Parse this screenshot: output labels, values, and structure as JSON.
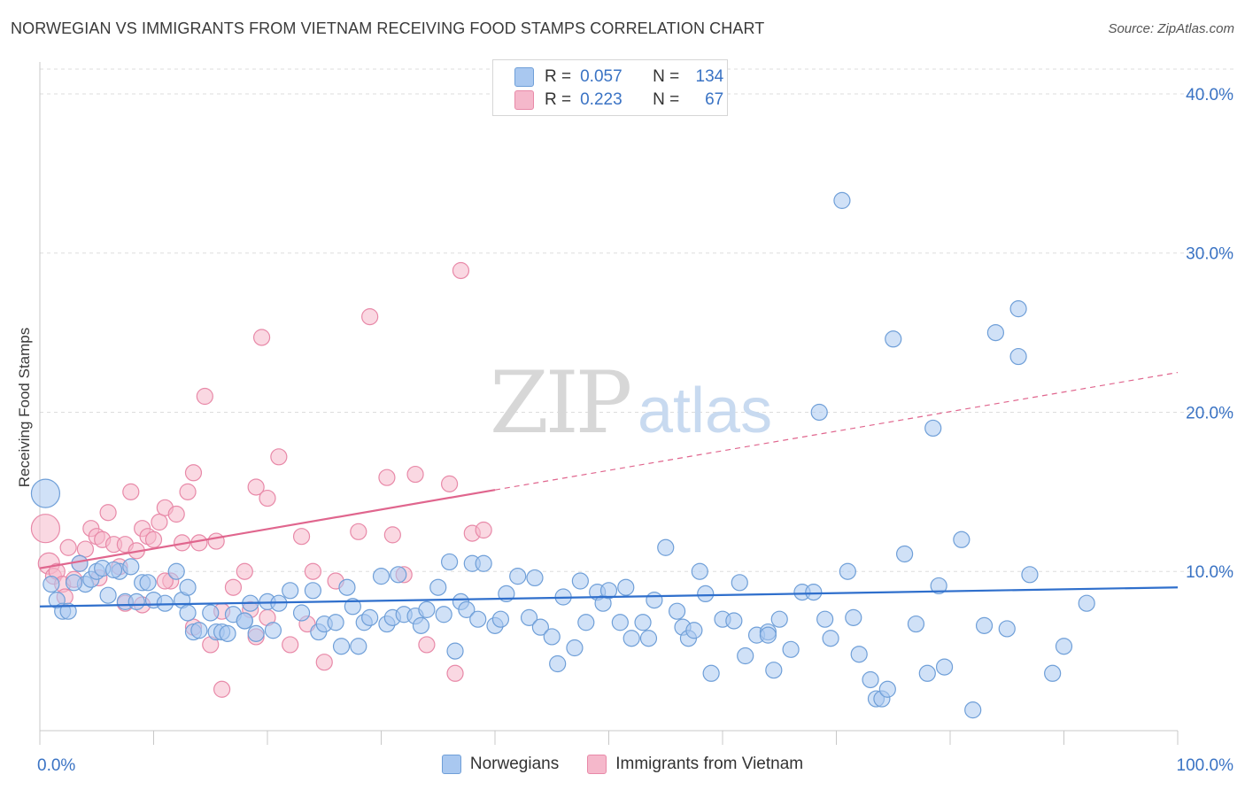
{
  "title": "NORWEGIAN VS IMMIGRANTS FROM VIETNAM RECEIVING FOOD STAMPS CORRELATION CHART",
  "source": "Source: ZipAtlas.com",
  "watermark": {
    "zip": "ZIP",
    "atlas": "atlas"
  },
  "colors": {
    "blue_fill": "#a9c8f0",
    "blue_stroke": "#6f9fd8",
    "blue_line": "#2f6fcc",
    "pink_fill": "#f5b8cb",
    "pink_stroke": "#e889a8",
    "pink_line": "#e0668e",
    "tick_label": "#3a73c4",
    "grid": "#dddddd"
  },
  "legend_top": {
    "rows": [
      {
        "r_label": "R =",
        "r_value": "0.057",
        "n_label": "N =",
        "n_value": "134",
        "color": "#a9c8f0",
        "border": "#6f9fd8"
      },
      {
        "r_label": "R =",
        "r_value": "0.223",
        "n_label": "N =",
        "n_value": "67",
        "color": "#f5b8cb",
        "border": "#e889a8"
      }
    ]
  },
  "legend_bottom": [
    {
      "label": "Norwegians",
      "color": "#a9c8f0",
      "border": "#6f9fd8"
    },
    {
      "label": "Immigrants from Vietnam",
      "color": "#f5b8cb",
      "border": "#e889a8"
    }
  ],
  "chart_data": {
    "type": "scatter",
    "title": "NORWEGIAN VS IMMIGRANTS FROM VIETNAM RECEIVING FOOD STAMPS CORRELATION CHART",
    "xlabel": "",
    "ylabel": "Receiving Food Stamps",
    "xlim": [
      0,
      100
    ],
    "ylim": [
      0,
      42
    ],
    "x_tick_labels": [
      {
        "value": 0,
        "label": "0.0%"
      },
      {
        "value": 100,
        "label": "100.0%"
      }
    ],
    "y_tick_labels": [
      {
        "value": 10,
        "label": "10.0%"
      },
      {
        "value": 20,
        "label": "20.0%"
      },
      {
        "value": 30,
        "label": "30.0%"
      },
      {
        "value": 40,
        "label": "40.0%"
      }
    ],
    "grid": true,
    "legend_position": "top-center",
    "series": [
      {
        "name": "Norwegians",
        "trend": {
          "x0": 0,
          "y0": 7.8,
          "x1": 100,
          "y1": 9.0,
          "dashed_from": null
        },
        "points": [
          [
            0.5,
            14.9,
            "L"
          ],
          [
            1,
            9.2
          ],
          [
            1.5,
            8.2
          ],
          [
            2,
            7.5
          ],
          [
            2.5,
            7.5
          ],
          [
            3.5,
            10.5
          ],
          [
            4,
            9.2
          ],
          [
            4.5,
            9.5
          ],
          [
            5,
            10.0
          ],
          [
            5.5,
            10.2
          ],
          [
            6,
            8.5
          ],
          [
            7,
            10.0
          ],
          [
            7.5,
            8.1
          ],
          [
            8,
            10.3
          ],
          [
            8.5,
            8.1
          ],
          [
            9,
            9.3
          ],
          [
            9.5,
            9.3
          ],
          [
            10,
            8.2
          ],
          [
            11,
            8.0
          ],
          [
            12,
            10.0
          ],
          [
            12.5,
            8.2
          ],
          [
            13,
            7.4
          ],
          [
            13.5,
            6.2
          ],
          [
            14,
            6.3
          ],
          [
            15,
            7.4
          ],
          [
            15.5,
            6.2
          ],
          [
            16,
            6.2
          ],
          [
            16.5,
            6.1
          ],
          [
            17,
            7.3
          ],
          [
            18,
            6.9
          ],
          [
            18.5,
            8.0
          ],
          [
            19,
            6.1
          ],
          [
            20,
            8.1
          ],
          [
            20.5,
            6.3
          ],
          [
            21,
            8.0
          ],
          [
            22,
            8.8
          ],
          [
            23,
            7.4
          ],
          [
            24,
            8.8
          ],
          [
            24.5,
            6.2
          ],
          [
            25,
            6.7
          ],
          [
            26,
            6.8
          ],
          [
            26.5,
            5.3
          ],
          [
            27,
            9.0
          ],
          [
            28,
            5.3
          ],
          [
            28.5,
            6.8
          ],
          [
            29,
            7.1
          ],
          [
            30,
            9.7
          ],
          [
            30.5,
            6.7
          ],
          [
            31,
            7.1
          ],
          [
            31.5,
            9.8
          ],
          [
            32,
            7.3
          ],
          [
            33,
            7.2
          ],
          [
            33.5,
            6.6
          ],
          [
            34,
            7.6
          ],
          [
            35,
            9.0
          ],
          [
            36,
            10.6
          ],
          [
            36.5,
            5.0
          ],
          [
            37,
            8.1
          ],
          [
            37.5,
            7.6
          ],
          [
            38,
            10.5
          ],
          [
            39,
            10.5
          ],
          [
            40,
            6.6
          ],
          [
            40.5,
            7.0
          ],
          [
            41,
            8.6
          ],
          [
            42,
            9.7
          ],
          [
            43,
            7.1
          ],
          [
            43.5,
            9.6
          ],
          [
            44,
            6.5
          ],
          [
            45,
            5.9
          ],
          [
            45.5,
            4.2
          ],
          [
            46,
            8.4
          ],
          [
            47,
            5.2
          ],
          [
            47.5,
            9.4
          ],
          [
            48,
            6.8
          ],
          [
            49,
            8.7
          ],
          [
            49.5,
            8.0
          ],
          [
            50,
            8.8
          ],
          [
            51,
            6.8
          ],
          [
            51.5,
            9.0
          ],
          [
            52,
            5.8
          ],
          [
            53,
            6.8
          ],
          [
            53.5,
            5.8
          ],
          [
            54,
            8.2
          ],
          [
            55,
            11.5
          ],
          [
            56,
            7.5
          ],
          [
            56.5,
            6.5
          ],
          [
            57,
            5.8
          ],
          [
            58,
            10.0
          ],
          [
            58.5,
            8.6
          ],
          [
            59,
            3.6
          ],
          [
            60,
            7.0
          ],
          [
            61,
            6.9
          ],
          [
            61.5,
            9.3
          ],
          [
            62,
            4.7
          ],
          [
            63,
            6.0
          ],
          [
            64,
            6.2
          ],
          [
            64.5,
            3.8
          ],
          [
            65,
            7.0
          ],
          [
            66,
            5.1
          ],
          [
            67,
            8.7
          ],
          [
            68,
            8.7
          ],
          [
            69,
            7.0
          ],
          [
            69.5,
            5.8
          ],
          [
            70.5,
            33.3
          ],
          [
            71,
            10.0
          ],
          [
            71.5,
            7.1
          ],
          [
            72,
            4.8
          ],
          [
            73,
            3.2
          ],
          [
            73.5,
            2.0
          ],
          [
            74,
            2.0
          ],
          [
            74.5,
            2.6
          ],
          [
            75,
            24.6
          ],
          [
            76,
            11.1
          ],
          [
            77,
            6.7
          ],
          [
            78,
            3.6
          ],
          [
            78.5,
            19.0
          ],
          [
            79,
            9.1
          ],
          [
            79.5,
            4.0
          ],
          [
            81,
            12.0
          ],
          [
            82,
            1.3
          ],
          [
            83,
            6.6
          ],
          [
            84,
            25.0
          ],
          [
            85,
            6.4
          ],
          [
            86,
            26.5
          ],
          [
            87,
            9.8
          ],
          [
            89,
            3.6
          ],
          [
            90,
            5.3
          ],
          [
            92,
            8.0
          ],
          [
            68.5,
            20.0
          ],
          [
            86,
            23.5
          ],
          [
            64,
            6.0
          ],
          [
            57.5,
            6.3
          ],
          [
            38.5,
            7.0
          ],
          [
            27.5,
            7.8
          ],
          [
            13,
            9.0
          ],
          [
            6.5,
            10.1
          ],
          [
            3,
            9.3
          ],
          [
            18,
            6.9
          ],
          [
            35.5,
            7.3
          ]
        ]
      },
      {
        "name": "Immigrants from Vietnam",
        "trend": {
          "x0": 0,
          "y0": 10.2,
          "x1": 100,
          "y1": 22.5,
          "dashed_from": 40
        },
        "points": [
          [
            0.5,
            12.7,
            "L"
          ],
          [
            0.8,
            10.5,
            "M"
          ],
          [
            1.2,
            9.7
          ],
          [
            1.5,
            10.0
          ],
          [
            2,
            9.2
          ],
          [
            2.5,
            11.5
          ],
          [
            3,
            9.5
          ],
          [
            3.5,
            10.5
          ],
          [
            4,
            11.4
          ],
          [
            4.5,
            12.7
          ],
          [
            5,
            12.2
          ],
          [
            5.5,
            12.0
          ],
          [
            6,
            13.7
          ],
          [
            6.5,
            11.7
          ],
          [
            7,
            10.3
          ],
          [
            7.5,
            11.7
          ],
          [
            8,
            15.0
          ],
          [
            8.5,
            11.3
          ],
          [
            9,
            12.7
          ],
          [
            9.5,
            12.2
          ],
          [
            10,
            12.0
          ],
          [
            10.5,
            13.1
          ],
          [
            11,
            14.0
          ],
          [
            11.5,
            9.4
          ],
          [
            12,
            13.6
          ],
          [
            12.5,
            11.8
          ],
          [
            13,
            15.0
          ],
          [
            13.5,
            16.2
          ],
          [
            14,
            11.8
          ],
          [
            14.5,
            21.0
          ],
          [
            15,
            5.4
          ],
          [
            15.5,
            11.9
          ],
          [
            16,
            2.6
          ],
          [
            17,
            9.0
          ],
          [
            18,
            10.0
          ],
          [
            18.5,
            7.6
          ],
          [
            19,
            15.3
          ],
          [
            19.5,
            24.7
          ],
          [
            20,
            14.6
          ],
          [
            21,
            17.2
          ],
          [
            22,
            5.4
          ],
          [
            23,
            12.2
          ],
          [
            24,
            10.0
          ],
          [
            25,
            4.3
          ],
          [
            26,
            9.4
          ],
          [
            28,
            12.5
          ],
          [
            29,
            26.0
          ],
          [
            30.5,
            15.9
          ],
          [
            31,
            12.3
          ],
          [
            32,
            9.8
          ],
          [
            33,
            16.1
          ],
          [
            34,
            5.4
          ],
          [
            36,
            15.5
          ],
          [
            36.5,
            3.6
          ],
          [
            37,
            28.9
          ],
          [
            38,
            12.4
          ],
          [
            39,
            12.6
          ],
          [
            9,
            7.9
          ],
          [
            11,
            9.4
          ],
          [
            13.5,
            6.5
          ],
          [
            16,
            7.5
          ],
          [
            20,
            7.1
          ],
          [
            7.5,
            8.0
          ],
          [
            5.2,
            9.6
          ],
          [
            2.2,
            8.4
          ],
          [
            23.5,
            6.7
          ],
          [
            19,
            5.9
          ]
        ]
      }
    ]
  }
}
